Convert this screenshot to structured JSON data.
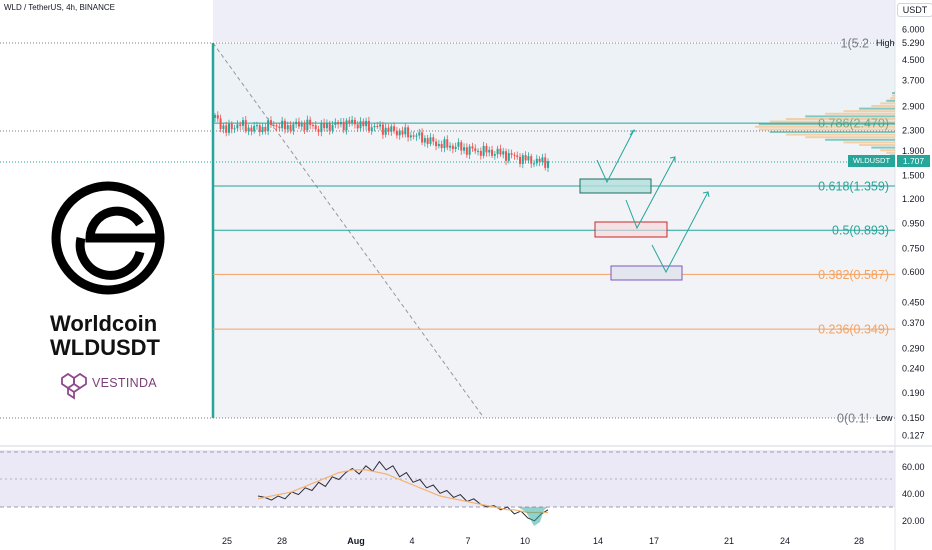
{
  "header": {
    "symbol_info": "WLD / TetherUS, 4h, BINANCE",
    "currency": "USDT"
  },
  "brand": {
    "name": "Worldcoin",
    "ticker": "WLDUSDT",
    "publisher": "VESTINDA"
  },
  "last_price": {
    "symbol": "WLDUSDT",
    "value": "1.707"
  },
  "colors": {
    "up": "#26a69a",
    "down": "#ef5350",
    "fib_upper": "#26a69a",
    "fib_lower": "#f4a261",
    "rsi_line": "#2a2e39",
    "rsi_ma": "#f6b26b"
  },
  "chart_data": [
    {
      "type": "candlestick",
      "title": "WLD / TetherUS, 4h, BINANCE",
      "scale": "log",
      "ylim": [
        0.127,
        6.0
      ],
      "y_ticks": [
        "6.000",
        "5.290",
        "4.500",
        "3.700",
        "2.900",
        "2.300",
        "1.900",
        "1.500",
        "1.200",
        "0.950",
        "0.750",
        "0.600",
        "0.450",
        "0.370",
        "0.290",
        "0.240",
        "0.190",
        "0.150",
        "0.127"
      ],
      "x_ticks": [
        "25",
        "28",
        "Aug",
        "4",
        "7",
        "10",
        "14",
        "17",
        "21",
        "24",
        "28"
      ],
      "price_path": [
        2.6,
        2.3,
        2.45,
        2.35,
        2.35,
        2.45,
        2.38,
        2.42,
        2.45,
        2.35,
        2.42,
        2.45,
        2.48,
        2.42,
        2.38,
        2.32,
        2.28,
        2.22,
        2.15,
        2.05,
        2.0,
        1.98,
        1.92,
        1.9,
        1.88,
        1.85,
        1.8,
        1.75,
        1.72,
        1.707
      ],
      "fib_levels": [
        {
          "ratio": "1",
          "label": "1(5.2",
          "value": 5.29,
          "tag": "High"
        },
        {
          "ratio": "0.786",
          "label": "0.786(2.470)",
          "value": 2.47
        },
        {
          "ratio": "0.618",
          "label": "0.618(1.359)",
          "value": 1.359
        },
        {
          "ratio": "0.5",
          "label": "0.5(0.893)",
          "value": 0.893
        },
        {
          "ratio": "0.382",
          "label": "0.382(0.587)",
          "value": 0.587
        },
        {
          "ratio": "0.236",
          "label": "0.236(0.349)",
          "value": 0.349
        },
        {
          "ratio": "0",
          "label": "0(0.1!",
          "value": 0.15,
          "tag": "Low"
        }
      ],
      "current_price": 1.707
    },
    {
      "type": "line",
      "title": "",
      "ylim": [
        15,
        75
      ],
      "y_ticks": [
        "60.00",
        "40.00",
        "20.00"
      ],
      "series": [
        {
          "values": [
            38,
            37,
            35,
            38,
            36,
            41,
            39,
            44,
            42,
            48,
            45,
            52,
            50,
            55,
            58,
            54,
            60,
            56,
            63,
            57,
            60,
            52,
            55,
            48,
            50,
            44,
            46,
            40,
            42,
            37,
            39,
            34,
            36,
            32,
            30,
            31,
            28,
            30,
            25,
            27,
            22,
            20,
            25,
            28
          ]
        },
        {
          "values": [
            36,
            37,
            38,
            39,
            40,
            41,
            43,
            45,
            47,
            49,
            51,
            53,
            55,
            56,
            57,
            57,
            57,
            56,
            55,
            54,
            52,
            50,
            48,
            46,
            44,
            42,
            40,
            38,
            37,
            36,
            35,
            34,
            33,
            32,
            31,
            30,
            29,
            28,
            28,
            27,
            26,
            26,
            26,
            26
          ]
        }
      ]
    }
  ]
}
